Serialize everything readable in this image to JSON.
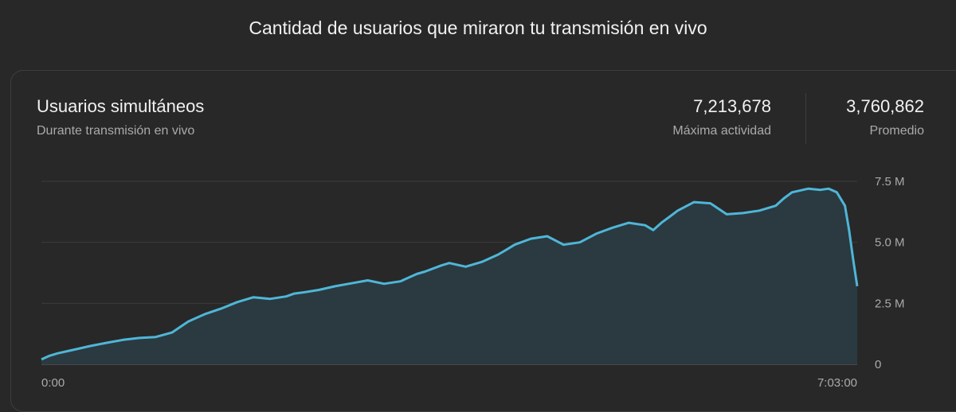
{
  "header": {
    "title": "Cantidad de usuarios que miraron tu transmisión en vivo"
  },
  "card": {
    "title": "Usuarios simultáneos",
    "subtitle": "Durante transmisión en vivo",
    "stats": [
      {
        "value": "7,213,678",
        "label": "Máxima actividad"
      },
      {
        "value": "3,760,862",
        "label": "Promedio"
      }
    ]
  },
  "colors": {
    "line": "#4fb6d8",
    "area": "#2a3a40",
    "grid": "#3c3c3c",
    "axis_text": "#aaaaaa"
  },
  "chart_data": {
    "type": "area",
    "title": "Usuarios simultáneos",
    "xlabel": "",
    "ylabel": "",
    "x_tick_labels": [
      "0:00",
      "7:03:00"
    ],
    "y_ticks": [
      {
        "value": 0,
        "label": "0"
      },
      {
        "value": 2500000,
        "label": "2.5 M"
      },
      {
        "value": 5000000,
        "label": "5.0 M"
      },
      {
        "value": 7500000,
        "label": "7.5 M"
      }
    ],
    "ylim": [
      0,
      7500000
    ],
    "xlim": [
      0,
      1
    ],
    "grid": true,
    "x_unit_note": "",
    "series": [
      {
        "name": "",
        "x": [
          0,
          0.01,
          0.02,
          0.04,
          0.06,
          0.08,
          0.1,
          0.12,
          0.14,
          0.16,
          0.18,
          0.2,
          0.22,
          0.24,
          0.26,
          0.28,
          0.3,
          0.31,
          0.32,
          0.34,
          0.36,
          0.38,
          0.4,
          0.42,
          0.44,
          0.46,
          0.47,
          0.49,
          0.5,
          0.52,
          0.54,
          0.56,
          0.57,
          0.58,
          0.6,
          0.62,
          0.64,
          0.66,
          0.68,
          0.7,
          0.72,
          0.74,
          0.75,
          0.76,
          0.77,
          0.78,
          0.8,
          0.82,
          0.84,
          0.86,
          0.88,
          0.9,
          0.91,
          0.92,
          0.94,
          0.955,
          0.965,
          0.975,
          0.985,
          0.99,
          0.995,
          1.0
        ],
        "values": [
          200000,
          350000,
          450000,
          600000,
          750000,
          880000,
          1000000,
          1080000,
          1120000,
          1300000,
          1750000,
          2050000,
          2280000,
          2550000,
          2750000,
          2680000,
          2780000,
          2900000,
          2940000,
          3050000,
          3200000,
          3320000,
          3440000,
          3300000,
          3400000,
          3700000,
          3800000,
          4050000,
          4150000,
          4000000,
          4200000,
          4500000,
          4700000,
          4900000,
          5150000,
          5250000,
          4900000,
          5000000,
          5350000,
          5600000,
          5800000,
          5700000,
          5500000,
          5800000,
          6050000,
          6300000,
          6650000,
          6600000,
          6150000,
          6200000,
          6300000,
          6500000,
          6800000,
          7050000,
          7200000,
          7150000,
          7200000,
          7050000,
          6500000,
          5500000,
          4300000,
          3200000
        ]
      }
    ]
  }
}
